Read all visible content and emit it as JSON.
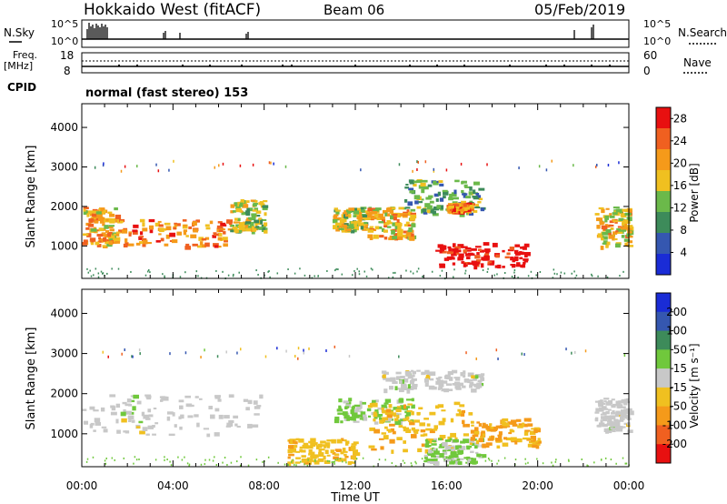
{
  "header": {
    "station": "Hokkaido West (fitACF)",
    "beam": "Beam 06",
    "date": "05/Feb/2019"
  },
  "noise_panel": {
    "left_label": "N.Sky",
    "right_label": "N.Search",
    "left_ticks": [
      "10^5",
      "10^0"
    ],
    "right_ticks": [
      "10^5",
      "10^0"
    ]
  },
  "freq_panel": {
    "left_label_1": "Freq.",
    "left_label_2": "[MHz]",
    "left_ticks": [
      "18",
      "8"
    ],
    "right_label": "Nave",
    "right_ticks": [
      "60",
      "0"
    ]
  },
  "cpid": {
    "label": "CPID",
    "text": "normal (fast stereo) 153"
  },
  "x_axis": {
    "label": "Time UT",
    "ticks": [
      "00:00",
      "04:00",
      "08:00",
      "12:00",
      "16:00",
      "20:00",
      "00:00"
    ]
  },
  "colors": {
    "power_scale": [
      "#1a2cd6",
      "#3557b0",
      "#3d8b5a",
      "#6bb94a",
      "#f0c020",
      "#f59a1a",
      "#f06020",
      "#e81010"
    ],
    "velocity_scale": [
      "#1a2cd6",
      "#3557b0",
      "#3d8b5a",
      "#70c83c",
      "#c8c8c8",
      "#f0c020",
      "#f59a1a",
      "#f06020",
      "#e81010"
    ]
  },
  "chart_data": [
    {
      "type": "heatmap",
      "title": "",
      "xlabel": "Time UT",
      "ylabel": "Slant Range [km]",
      "xlim": [
        0,
        24
      ],
      "ylim": [
        180,
        4600
      ],
      "y_ticks": [
        "1000",
        "2000",
        "3000",
        "4000"
      ],
      "colorbar": {
        "label": "Power [dB]",
        "ticks": [
          "4",
          "8",
          "12",
          "16",
          "20",
          "24",
          "28"
        ],
        "range": [
          0,
          30
        ]
      },
      "regions": [
        {
          "t": [
            0.0,
            1.5
          ],
          "r": [
            1000,
            2000
          ],
          "level": 20
        },
        {
          "t": [
            1.5,
            6.5
          ],
          "r": [
            1000,
            1700
          ],
          "level": 22
        },
        {
          "t": [
            6.5,
            8.0
          ],
          "r": [
            1400,
            2200
          ],
          "level": 14
        },
        {
          "t": [
            11.0,
            12.5
          ],
          "r": [
            1400,
            2000
          ],
          "level": 16
        },
        {
          "t": [
            12.5,
            14.5
          ],
          "r": [
            1200,
            2000
          ],
          "level": 18
        },
        {
          "t": [
            14.0,
            17.5
          ],
          "r": [
            1800,
            2700
          ],
          "level": 12
        },
        {
          "t": [
            15.5,
            19.5
          ],
          "r": [
            500,
            1100
          ],
          "level": 30
        },
        {
          "t": [
            16.0,
            17.0
          ],
          "r": [
            1900,
            2100
          ],
          "level": 22
        },
        {
          "t": [
            22.5,
            24.0
          ],
          "r": [
            1000,
            2000
          ],
          "level": 18
        }
      ]
    },
    {
      "type": "heatmap",
      "title": "",
      "xlabel": "Time UT",
      "ylabel": "Slant Range [km]",
      "xlim": [
        0,
        24
      ],
      "ylim": [
        180,
        4600
      ],
      "y_ticks": [
        "1000",
        "2000",
        "3000",
        "4000"
      ],
      "colorbar": {
        "label": "Velocity [m s⁻¹]",
        "ticks": [
          "200",
          "100",
          "50",
          "15",
          "-15",
          "-50",
          "-100",
          "-200"
        ],
        "range": [
          -250,
          250
        ]
      },
      "regions": [
        {
          "t": [
            0.0,
            7.8
          ],
          "r": [
            1000,
            2000
          ],
          "level": 0
        },
        {
          "t": [
            9.0,
            12.0
          ],
          "r": [
            300,
            900
          ],
          "level": -60
        },
        {
          "t": [
            11.0,
            14.5
          ],
          "r": [
            1300,
            1900
          ],
          "level": 40
        },
        {
          "t": [
            12.5,
            17.0
          ],
          "r": [
            600,
            1800
          ],
          "level": -70
        },
        {
          "t": [
            13.0,
            17.5
          ],
          "r": [
            2100,
            2600
          ],
          "level": 0
        },
        {
          "t": [
            15.0,
            17.5
          ],
          "r": [
            300,
            900
          ],
          "level": 30
        },
        {
          "t": [
            17.0,
            20.0
          ],
          "r": [
            700,
            1400
          ],
          "level": -90
        },
        {
          "t": [
            22.5,
            24.0
          ],
          "r": [
            1100,
            1900
          ],
          "level": 0
        }
      ]
    }
  ]
}
